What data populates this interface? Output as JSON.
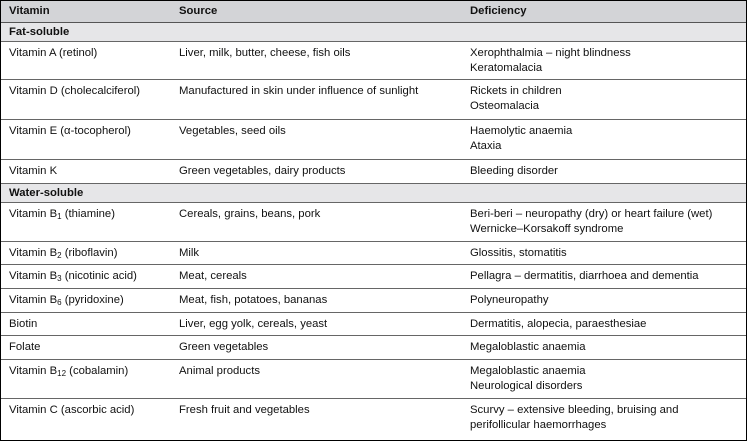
{
  "headers": {
    "vitamin": "Vitamin",
    "source": "Source",
    "deficiency": "Deficiency"
  },
  "sections": {
    "fat": "Fat-soluble",
    "water": "Water-soluble"
  },
  "rows": [
    {
      "name": "Vitamin A (retinol)",
      "source": "Liver, milk, butter, cheese, fish oils",
      "def1": "Xerophthalmia – night blindness",
      "def2": "Keratomalacia"
    },
    {
      "name": "Vitamin D (cholecalciferol)",
      "source": "Manufactured in skin under influence of sunlight",
      "def1": "Rickets in children",
      "def2": "Osteomalacia"
    },
    {
      "name": "Vitamin E (α-tocopherol)",
      "source": "Vegetables, seed oils",
      "def1": "Haemolytic anaemia",
      "def2": "Ataxia"
    },
    {
      "name": "Vitamin K",
      "source": "Green vegetables, dairy products",
      "def1": "Bleeding disorder",
      "def2": ""
    },
    {
      "name_pre": "Vitamin B",
      "name_sub": "1",
      "name_post": " (thiamine)",
      "source": "Cereals, grains, beans, pork",
      "def1": "Beri-beri – neuropathy (dry) or heart failure (wet)",
      "def2": "Wernicke–Korsakoff syndrome"
    },
    {
      "name_pre": "Vitamin B",
      "name_sub": "2",
      "name_post": " (riboflavin)",
      "source": "Milk",
      "def1": "Glossitis, stomatitis",
      "def2": ""
    },
    {
      "name_pre": "Vitamin B",
      "name_sub": "3",
      "name_post": " (nicotinic acid)",
      "source": "Meat, cereals",
      "def1": "Pellagra – dermatitis, diarrhoea and dementia",
      "def2": ""
    },
    {
      "name_pre": "Vitamin B",
      "name_sub": "6",
      "name_post": " (pyridoxine)",
      "source": "Meat, fish, potatoes, bananas",
      "def1": "Polyneuropathy",
      "def2": ""
    },
    {
      "name": "Biotin",
      "source": "Liver, egg yolk, cereals, yeast",
      "def1": "Dermatitis, alopecia, paraesthesiae",
      "def2": ""
    },
    {
      "name": "Folate",
      "source": "Green vegetables",
      "def1": "Megaloblastic anaemia",
      "def2": ""
    },
    {
      "name_pre": "Vitamin B",
      "name_sub": "12",
      "name_post": " (cobalamin)",
      "source": "Animal products",
      "def1": "Megaloblastic anaemia",
      "def2": "Neurological disorders"
    },
    {
      "name": "Vitamin C (ascorbic acid)",
      "source": "Fresh fruit and vegetables",
      "def1": "Scurvy – extensive bleeding, bruising and",
      "def2": "perifollicular haemorrhages"
    }
  ]
}
